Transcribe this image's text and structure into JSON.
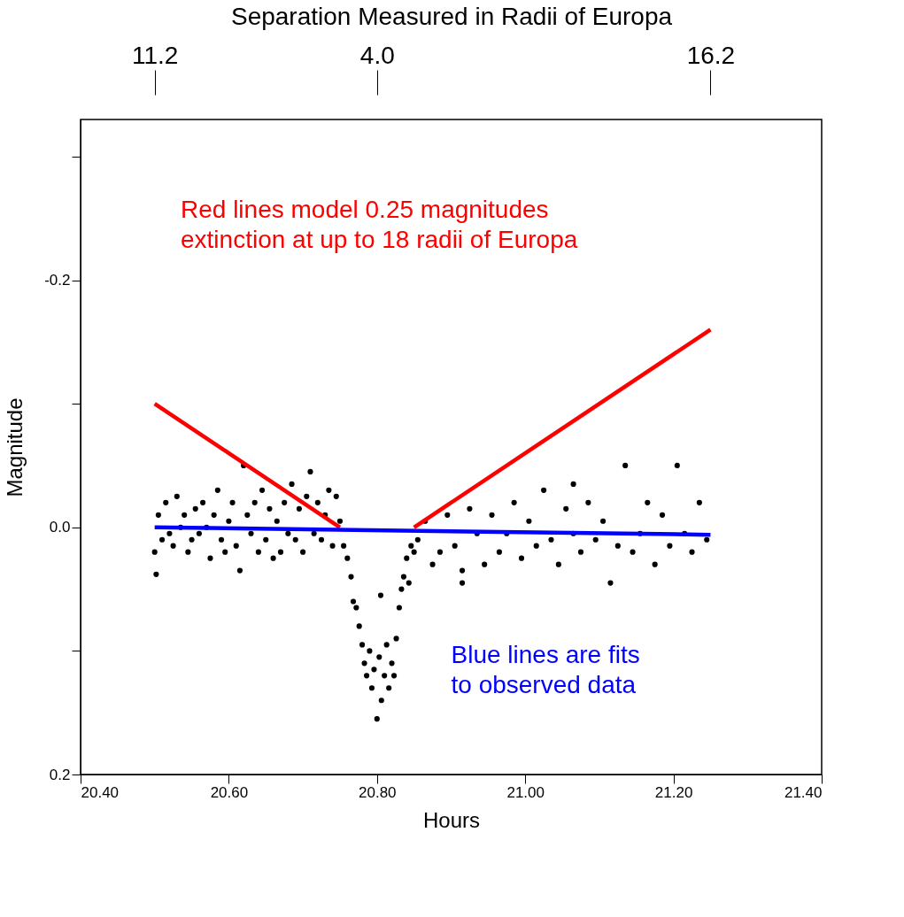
{
  "chart_data": {
    "type": "scatter",
    "xlabel": "Hours",
    "ylabel": "Magnitude",
    "x2label": "Separation Measured in Radii of Europa",
    "xlim": [
      20.4,
      21.4
    ],
    "xticks": [
      {
        "value": 20.4,
        "label": "20.40"
      },
      {
        "value": 20.6,
        "label": "20.60"
      },
      {
        "value": 20.8,
        "label": "20.80"
      },
      {
        "value": 21.0,
        "label": "21.00"
      },
      {
        "value": 21.2,
        "label": "21.20"
      },
      {
        "value": 21.4,
        "label": "21.40"
      }
    ],
    "ylim": [
      0.2,
      -0.33
    ],
    "yticks": [
      {
        "value": -0.3,
        "label": null
      },
      {
        "value": -0.2,
        "label": "-0.2"
      },
      {
        "value": -0.1,
        "label": null
      },
      {
        "value": 0.0,
        "label": "0.0"
      },
      {
        "value": 0.1,
        "label": null
      },
      {
        "value": 0.2,
        "label": "0.2"
      }
    ],
    "grid": false,
    "annotations": [
      "Red lines model 0.25 magnitudes\nextinction at up to 18 radii of Europa",
      "Blue lines are fits\nto observed data",
      {
        "text": "11.2",
        "x": 20.5
      },
      {
        "text": "4.0",
        "x": 20.8
      },
      {
        "text": "16.2",
        "x": 21.25
      }
    ],
    "series": [
      {
        "color": "#000000",
        "marker": "circle",
        "x": [
          20.5,
          20.505,
          20.51,
          20.515,
          20.52,
          20.525,
          20.53,
          20.535,
          20.54,
          20.545,
          20.55,
          20.555,
          20.56,
          20.565,
          20.57,
          20.575,
          20.58,
          20.585,
          20.59,
          20.595,
          20.6,
          20.605,
          20.61,
          20.615,
          20.62,
          20.625,
          20.63,
          20.635,
          20.64,
          20.645,
          20.65,
          20.655,
          20.66,
          20.665,
          20.67,
          20.675,
          20.68,
          20.685,
          20.69,
          20.695,
          20.7,
          20.705,
          20.71,
          20.715,
          20.72,
          20.725,
          20.73,
          20.735,
          20.74,
          20.745,
          20.75,
          20.502,
          20.755,
          20.76,
          20.765,
          20.768,
          20.772,
          20.776,
          20.78,
          20.783,
          20.786,
          20.79,
          20.793,
          20.796,
          20.8,
          20.803,
          20.806,
          20.81,
          20.813,
          20.816,
          20.82,
          20.823,
          20.826,
          20.83,
          20.833,
          20.836,
          20.84,
          20.843,
          20.846,
          20.85,
          20.805,
          20.855,
          20.865,
          20.875,
          20.885,
          20.895,
          20.905,
          20.915,
          20.925,
          20.935,
          20.945,
          20.955,
          20.965,
          20.975,
          20.985,
          20.995,
          21.005,
          21.015,
          21.025,
          21.035,
          21.045,
          21.055,
          21.065,
          21.075,
          21.085,
          21.095,
          21.105,
          21.115,
          21.125,
          21.135,
          21.145,
          21.155,
          21.165,
          21.175,
          21.185,
          21.195,
          21.205,
          21.215,
          21.225,
          21.235,
          21.245,
          20.915,
          21.065
        ],
        "values": [
          0.02,
          -0.01,
          0.01,
          -0.02,
          0.005,
          0.015,
          -0.025,
          0.0,
          -0.01,
          0.02,
          0.01,
          -0.015,
          0.005,
          -0.02,
          0.0,
          0.025,
          -0.01,
          -0.03,
          0.01,
          0.02,
          -0.005,
          -0.02,
          0.015,
          0.035,
          -0.05,
          -0.01,
          0.005,
          -0.02,
          0.02,
          -0.03,
          0.01,
          -0.015,
          0.025,
          -0.005,
          0.02,
          -0.02,
          0.005,
          -0.035,
          0.01,
          -0.015,
          0.02,
          -0.025,
          -0.045,
          0.005,
          -0.02,
          0.01,
          -0.01,
          -0.03,
          0.015,
          -0.025,
          -0.005,
          0.038,
          0.015,
          0.025,
          0.04,
          0.06,
          0.065,
          0.08,
          0.095,
          0.11,
          0.12,
          0.1,
          0.13,
          0.115,
          0.155,
          0.105,
          0.14,
          0.12,
          0.095,
          0.13,
          0.11,
          0.12,
          0.09,
          0.065,
          0.05,
          0.04,
          0.025,
          0.045,
          0.015,
          0.02,
          0.055,
          0.01,
          -0.005,
          0.03,
          0.02,
          -0.01,
          0.015,
          0.035,
          -0.015,
          0.005,
          0.03,
          -0.01,
          0.02,
          0.005,
          -0.02,
          0.025,
          -0.005,
          0.015,
          -0.03,
          0.01,
          0.03,
          -0.015,
          0.005,
          0.02,
          -0.02,
          0.01,
          -0.005,
          0.045,
          0.015,
          -0.05,
          0.02,
          0.005,
          -0.02,
          0.03,
          -0.01,
          0.015,
          -0.05,
          0.005,
          0.02,
          -0.02,
          0.01,
          0.045,
          -0.035
        ]
      },
      {
        "type": "line",
        "marker": "none",
        "color": "#ff0000",
        "x": [
          20.5,
          20.75,
          20.8,
          20.85,
          21.25
        ],
        "values": [
          -0.1,
          0.0,
          null,
          0.0,
          -0.16
        ]
      },
      {
        "type": "line",
        "marker": "none",
        "color": "#0000ff",
        "x": [
          20.5,
          21.25
        ],
        "values": [
          0.0,
          0.006
        ]
      }
    ]
  }
}
